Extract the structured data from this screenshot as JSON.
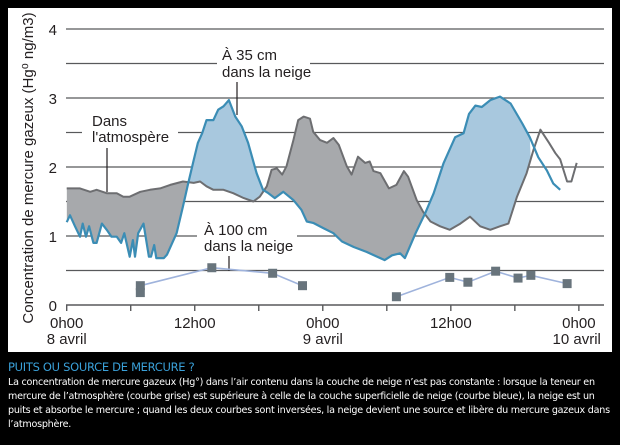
{
  "chart_data": {
    "type": "line",
    "ylabel": "Concentration de mercure gazeux (Hg⁰ ng/m3)",
    "xlabel": "",
    "ylim": [
      0,
      4
    ],
    "xlim_hours": [
      0,
      48
    ],
    "yticks": [
      "0",
      "1",
      "2",
      "3",
      "4"
    ],
    "xticks": [
      {
        "hour": 0,
        "line1": "0h00",
        "line2": "8 avril"
      },
      {
        "hour": 12,
        "line1": "12h00",
        "line2": ""
      },
      {
        "hour": 24,
        "line1": "0h00",
        "line2": "9 avril"
      },
      {
        "hour": 36,
        "line1": "12h00",
        "line2": ""
      },
      {
        "hour": 48,
        "line1": "0h00",
        "line2": "10 avril"
      }
    ],
    "grid": true,
    "annotations": {
      "snow35": [
        "À 35 cm",
        "dans la neige"
      ],
      "atmosphere": [
        "Dans",
        "l'atmospère"
      ],
      "snow100": [
        "À 100 cm",
        "dans la neige"
      ]
    },
    "colors": {
      "atmosphere_line": "#6d6e71",
      "atmosphere_fill": "#a7a9ac",
      "snow35_line": "#3b8db5",
      "snow35_fill": "#a8c8de",
      "snow100_line": "#9fb3dc",
      "snow100_marker": "#68747c"
    },
    "series": [
      {
        "name": "Dans l'atmospère",
        "x": [
          0,
          1.25,
          2.2,
          2.8,
          3.75,
          4.7,
          5.3,
          5.9,
          6.9,
          7.8,
          8.75,
          9.7,
          10.9,
          11.9,
          12.5,
          13.1,
          13.75,
          14.7,
          15.6,
          16.6,
          17.5,
          18.1,
          18.75,
          19.2,
          19.7,
          20.2,
          20.6,
          21.25,
          21.7,
          22.2,
          22.8,
          23.1,
          23.75,
          24.4,
          25,
          25.5,
          26.25,
          26.7,
          27.3,
          27.97,
          28.4,
          28.75,
          29.4,
          30.2,
          30.9,
          31.6,
          32,
          32.8,
          33.4,
          34.1,
          35,
          35.9,
          36.9,
          37.8,
          38.75,
          39.7,
          40.6,
          41.4,
          42.2,
          43.1,
          43.75,
          44.4,
          45.2,
          45.8,
          46.25,
          46.9,
          47.3,
          47.8
        ],
        "y": [
          1.69,
          1.69,
          1.64,
          1.67,
          1.62,
          1.62,
          1.57,
          1.57,
          1.64,
          1.67,
          1.69,
          1.74,
          1.79,
          1.77,
          1.79,
          1.72,
          1.67,
          1.67,
          1.62,
          1.55,
          1.5,
          1.57,
          1.72,
          1.96,
          1.98,
          1.89,
          2.01,
          2.39,
          2.68,
          2.73,
          2.7,
          2.51,
          2.39,
          2.35,
          2.42,
          2.32,
          2.01,
          1.89,
          2.15,
          2.06,
          2.08,
          1.94,
          1.91,
          1.69,
          1.74,
          1.94,
          1.86,
          1.52,
          1.35,
          1.21,
          1.14,
          1.09,
          1.18,
          1.28,
          1.14,
          1.09,
          1.14,
          1.18,
          1.57,
          1.91,
          2.25,
          2.54,
          2.35,
          2.2,
          2.11,
          1.79,
          1.79,
          2.06
        ]
      },
      {
        "name": "À 35 cm dans la neige",
        "x": [
          0,
          0.31,
          0.78,
          1.25,
          1.5,
          1.81,
          2.1,
          2.5,
          2.8,
          3.3,
          3.75,
          4.2,
          4.7,
          5.1,
          5.4,
          5.9,
          6.2,
          6.4,
          6.7,
          7.2,
          7.7,
          7.9,
          8.2,
          8.4,
          9.1,
          9.4,
          10.3,
          10.9,
          11.4,
          11.9,
          12.3,
          12.7,
          13.1,
          13.75,
          14.2,
          14.7,
          15.2,
          15.8,
          16.4,
          17,
          17.8,
          18.4,
          18.9,
          19.5,
          20.3,
          21.25,
          22.0,
          22.5,
          23.1,
          24.1,
          25,
          25.8,
          26.9,
          28.1,
          29.1,
          29.8,
          30.5,
          31.25,
          31.7,
          32.7,
          33.6,
          34.4,
          35.3,
          36.4,
          37.2,
          37.7,
          38.3,
          38.9,
          39.7,
          40.6,
          41.6,
          42.7,
          43.4,
          44.2,
          45,
          45.6,
          46.25
        ],
        "y": [
          1.2,
          1.3,
          1.14,
          0.99,
          1.18,
          0.99,
          1.14,
          0.9,
          0.9,
          1.18,
          1.09,
          0.99,
          0.99,
          0.9,
          1.04,
          0.7,
          0.94,
          0.7,
          1.04,
          1.18,
          0.7,
          0.7,
          0.87,
          0.68,
          0.68,
          0.73,
          1.04,
          1.43,
          1.77,
          2.1,
          2.35,
          2.49,
          2.68,
          2.68,
          2.83,
          2.88,
          2.97,
          2.73,
          2.59,
          2.35,
          1.91,
          1.67,
          1.62,
          1.55,
          1.64,
          1.52,
          1.38,
          1.21,
          1.19,
          1.11,
          1.04,
          0.92,
          0.84,
          0.77,
          0.7,
          0.65,
          0.72,
          0.75,
          0.68,
          1.04,
          1.33,
          1.62,
          2.05,
          2.43,
          2.49,
          2.77,
          2.89,
          2.87,
          2.97,
          3.02,
          2.92,
          2.63,
          2.43,
          2.14,
          1.95,
          1.76,
          1.67
        ]
      },
      {
        "name": "À 100 cm dans la neige",
        "segments": [
          {
            "x": [
              6.9,
              13.6,
              19.3,
              22.1
            ],
            "y": [
              0.28,
              0.54,
              0.46,
              0.28
            ]
          },
          {
            "x": [
              30.9,
              35.9,
              37.6,
              40.2,
              42.3,
              43.5,
              46.9
            ],
            "y": [
              0.12,
              0.4,
              0.33,
              0.49,
              0.39,
              0.43,
              0.31
            ]
          }
        ],
        "extra_points": [
          {
            "x": 6.9,
            "y": 0.18
          }
        ]
      }
    ]
  },
  "caption": {
    "title": "PUITS OU SOURCE DE MERCURE ?",
    "body": "La concentration de mercure gazeux (Hg°) dans l’air contenu dans la couche de neige n’est pas constante : lorsque la teneur en mercure de l’atmosphère (courbe grise) est supérieure à celle de la couche superficielle de neige (courbe bleue), la neige est un puits et absorbe le mercure ; quand les deux courbes sont inversées, la neige devient une source et libère du mercure gazeux dans l’atmosphère."
  }
}
